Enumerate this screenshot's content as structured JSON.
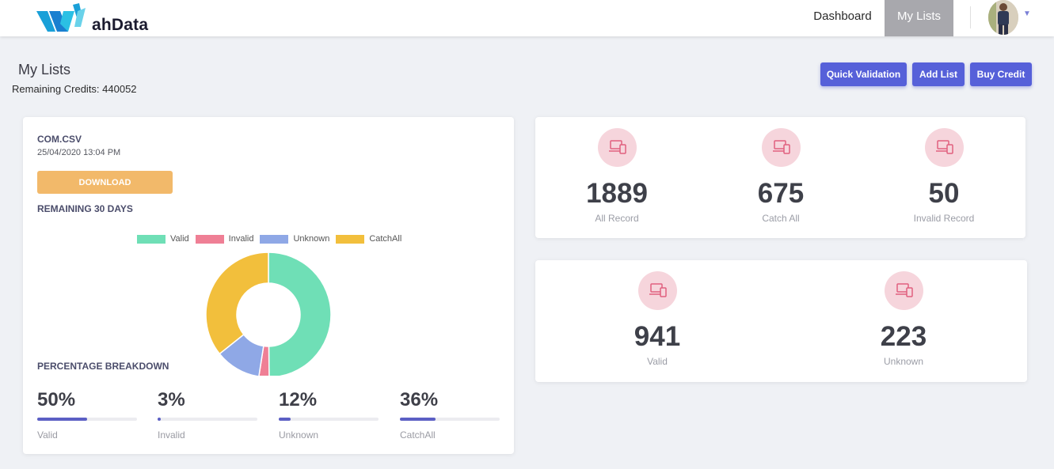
{
  "header": {
    "logo_text": "ahData",
    "nav": [
      {
        "label": "Dashboard",
        "active": false
      },
      {
        "label": "My Lists",
        "active": true
      }
    ]
  },
  "page": {
    "title": "My Lists",
    "credits_label": "Remaining Credits: ",
    "credits_value": "440052",
    "actions": {
      "quick_validation": "Quick Validation",
      "add_list": "Add List",
      "buy_credit": "Buy Credit"
    }
  },
  "list_card": {
    "file_name": "COM.CSV",
    "date": "25/04/2020 13:04 PM",
    "download_label": "DOWNLOAD",
    "remaining": "REMAINING 30 DAYS",
    "percentage_title": "PERCENTAGE BREAKDOWN",
    "breakdown": [
      {
        "value": "50%",
        "label": "Valid",
        "fraction": 0.5
      },
      {
        "value": "3%",
        "label": "Invalid",
        "fraction": 0.03
      },
      {
        "value": "12%",
        "label": "Unknown",
        "fraction": 0.12
      },
      {
        "value": "36%",
        "label": "CatchAll",
        "fraction": 0.36
      }
    ]
  },
  "chart_data": {
    "type": "pie",
    "categories": [
      "Valid",
      "Invalid",
      "Unknown",
      "CatchAll"
    ],
    "values": [
      941,
      50,
      223,
      675
    ],
    "colors": [
      "#6fdfb6",
      "#ef7f95",
      "#8fa8e6",
      "#f2bf3c"
    ],
    "legend": "top"
  },
  "stats_row1": [
    {
      "value": "1889",
      "label": "All Record",
      "icon": "laptop-phone-icon"
    },
    {
      "value": "675",
      "label": "Catch All",
      "icon": "laptop-phone-icon"
    },
    {
      "value": "50",
      "label": "Invalid Record",
      "icon": "laptop-phone-icon"
    }
  ],
  "stats_row2": [
    {
      "value": "941",
      "label": "Valid",
      "icon": "laptop-phone-icon"
    },
    {
      "value": "223",
      "label": "Unknown",
      "icon": "laptop-phone-icon"
    }
  ],
  "colors": {
    "accent": "#5660d9",
    "download": "#f2b96a",
    "icon_bg": "#f6d5dc",
    "icon_fg": "#e0607e"
  }
}
